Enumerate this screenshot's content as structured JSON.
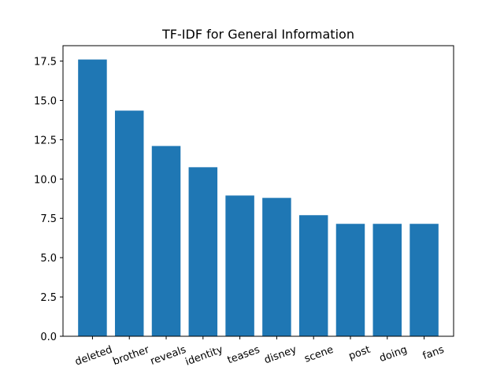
{
  "chart_data": {
    "type": "bar",
    "title": "TF-IDF for General Information",
    "xlabel": "",
    "ylabel": "",
    "categories": [
      "deleted",
      "brother",
      "reveals",
      "identity",
      "teases",
      "disney",
      "scene",
      "post",
      "doing",
      "fans"
    ],
    "values": [
      17.6,
      14.35,
      12.1,
      10.75,
      8.95,
      8.8,
      7.7,
      7.15,
      7.15,
      7.15
    ],
    "yticks": [
      "0.0",
      "2.5",
      "5.0",
      "7.5",
      "10.0",
      "12.5",
      "15.0",
      "17.5"
    ],
    "ytick_values": [
      0,
      2.5,
      5,
      7.5,
      10,
      12.5,
      15,
      17.5
    ],
    "ylim": [
      0,
      18.48
    ],
    "grid": false,
    "bar_color": "#1f77b4",
    "x_tick_rotation_deg": -20
  }
}
